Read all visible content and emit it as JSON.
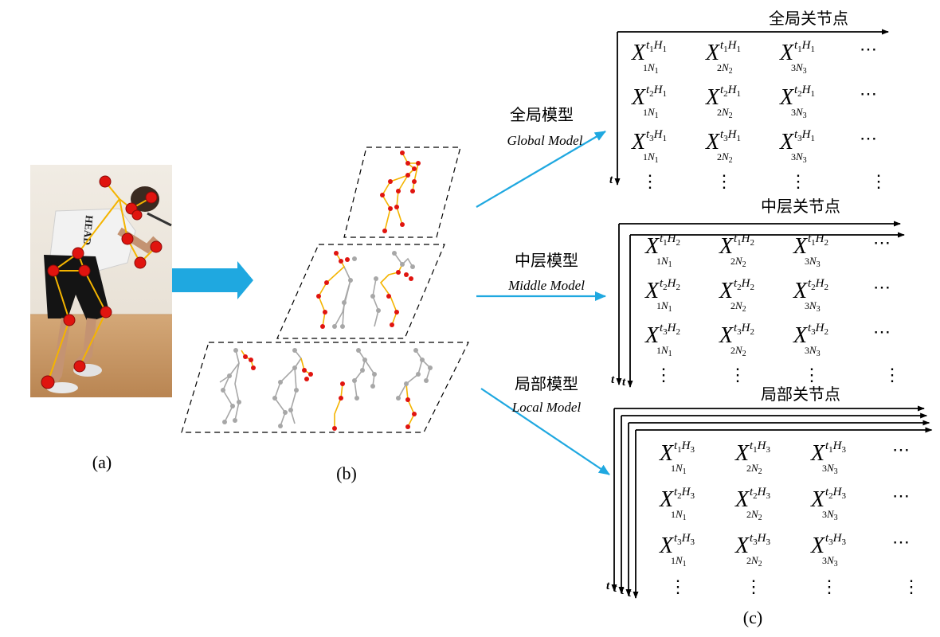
{
  "panel_labels": {
    "a": "(a)",
    "b": "(b)",
    "c": "(c)"
  },
  "models": [
    {
      "id": "global",
      "zh": "全局模型",
      "en": "Global Model"
    },
    {
      "id": "middle",
      "zh": "中层模型",
      "en": "Middle Model"
    },
    {
      "id": "local",
      "zh": "局部模型",
      "en": "Local Model"
    }
  ],
  "matrices": [
    {
      "id": "global",
      "title": "全局关节点",
      "H": "1",
      "layers": 1
    },
    {
      "id": "middle",
      "title": "中层关节点",
      "H": "2",
      "layers": 2
    },
    {
      "id": "local",
      "title": "局部关节点",
      "H": "3",
      "layers": 4
    }
  ],
  "matrix_symbols": {
    "var": "X",
    "time_axis": "t",
    "ellipsis": "⋯",
    "vdots": "⋮"
  },
  "photo": {
    "shirt_text": "HEAD"
  },
  "colors": {
    "arrow_blue": "#1fa8e0",
    "joint_red": "#e0140f",
    "limb_orange": "#f4b400",
    "skeleton_gray": "#a7a7a7",
    "floor": "#c99864",
    "wall": "#ece6dc"
  }
}
